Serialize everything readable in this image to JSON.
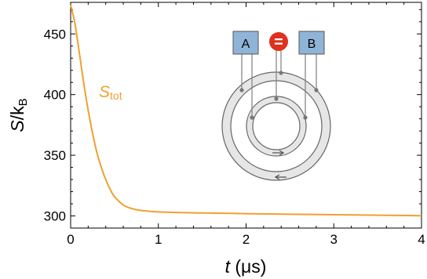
{
  "chart_data": {
    "type": "line",
    "xlabel": {
      "var": "t",
      "unit": " (μs)"
    },
    "ylabel": {
      "base": "S",
      "sep": "/",
      "k": "k",
      "sub": "B"
    },
    "xlim": [
      0,
      4
    ],
    "ylim": [
      290,
      476
    ],
    "x_ticks": [
      0,
      1,
      2,
      3,
      4
    ],
    "y_ticks": [
      300,
      350,
      400,
      450
    ],
    "grid": false,
    "series": [
      {
        "name": "S",
        "name_sub": "tot",
        "color": "#f0a030",
        "x": [
          0,
          0.05,
          0.1,
          0.15,
          0.2,
          0.25,
          0.3,
          0.35,
          0.4,
          0.45,
          0.5,
          0.6,
          0.7,
          0.8,
          0.9,
          1.0,
          1.2,
          1.5,
          2.0,
          2.5,
          3.0,
          3.5,
          4.0
        ],
        "y": [
          474,
          458,
          434,
          409,
          387,
          368,
          352,
          340,
          330,
          322,
          316,
          309,
          306,
          304.5,
          303.8,
          303.3,
          302.8,
          302.4,
          301.9,
          301.4,
          301.0,
          300.6,
          300.2
        ]
      }
    ]
  },
  "inset": {
    "box_a": "A",
    "box_b": "B",
    "equals": "=",
    "box_color": "#8fb4d8",
    "equals_color": "#e0301e",
    "ring_fill": "#e6e6e6"
  }
}
